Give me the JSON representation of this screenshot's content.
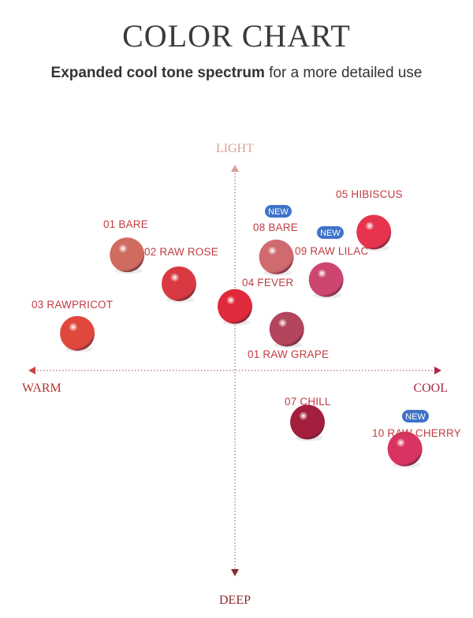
{
  "title": "COLOR CHART",
  "subtitle_bold": "Expanded cool tone spectrum",
  "subtitle_rest": " for a more detailed use",
  "colors": {
    "axis_light": "#d9a196",
    "axis_deep": "#8a2b2b",
    "label": "#c13b43",
    "badge": "#3f74c9"
  },
  "chart_data": {
    "type": "scatter",
    "title": "COLOR CHART",
    "x_axis": {
      "negative_label": "WARM",
      "positive_label": "COOL",
      "range": [
        -1,
        1
      ]
    },
    "y_axis": {
      "positive_label": "LIGHT",
      "negative_label": "DEEP",
      "range": [
        -1,
        1
      ]
    },
    "grid": false,
    "badge_text": "NEW",
    "points": [
      {
        "label": "01 BARE",
        "x": -0.52,
        "y": 0.56,
        "color": "#cf6c60",
        "new": false
      },
      {
        "label": "02 RAW ROSE",
        "x": -0.27,
        "y": 0.42,
        "color": "#d93a42",
        "new": false
      },
      {
        "label": "03 RAWPRICOT",
        "x": -0.76,
        "y": 0.18,
        "color": "#e0483d",
        "new": false
      },
      {
        "label": "04 FEVER",
        "x": 0.0,
        "y": 0.31,
        "color": "#e0293a",
        "new": false
      },
      {
        "label": "05 HIBISCUS",
        "x": 0.67,
        "y": 0.67,
        "color": "#e6344f",
        "new": false
      },
      {
        "label": "08 BARE",
        "x": 0.2,
        "y": 0.55,
        "color": "#cf6a6e",
        "new": true
      },
      {
        "label": "09 RAW LILAC",
        "x": 0.44,
        "y": 0.44,
        "color": "#cc4670",
        "new": true
      },
      {
        "label": "01 RAW GRAPE",
        "x": 0.25,
        "y": 0.2,
        "color": "#b3455d",
        "new": false
      },
      {
        "label": "07 CHILL",
        "x": 0.35,
        "y": -0.25,
        "color": "#a31f3d",
        "new": false
      },
      {
        "label": "10 RAW CHERRY",
        "x": 0.82,
        "y": -0.38,
        "color": "#d93461",
        "new": true
      }
    ]
  }
}
